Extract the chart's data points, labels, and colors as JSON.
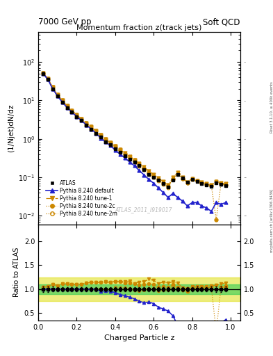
{
  "title_top_left": "7000 GeV pp",
  "title_top_right": "Soft QCD",
  "main_title": "Momentum fraction z(track jets)",
  "ylabel_main": "(1/Njet)dN/dz",
  "ylabel_ratio": "Ratio to ATLAS",
  "xlabel": "Charged Particle z",
  "watermark": "ATLAS_2011_I919017",
  "right_label_top": "Rivet 3.1.10, ≥ 400k events",
  "right_label_bottom": "mcplots.cern.ch [arXiv:1306.3436]",
  "z_atlas": [
    0.025,
    0.05,
    0.075,
    0.1,
    0.125,
    0.15,
    0.175,
    0.2,
    0.225,
    0.25,
    0.275,
    0.3,
    0.325,
    0.35,
    0.375,
    0.4,
    0.425,
    0.45,
    0.475,
    0.5,
    0.525,
    0.55,
    0.575,
    0.6,
    0.625,
    0.65,
    0.675,
    0.7,
    0.725,
    0.75,
    0.775,
    0.8,
    0.825,
    0.85,
    0.875,
    0.9,
    0.925,
    0.95,
    0.975
  ],
  "y_atlas": [
    50,
    35,
    20,
    13,
    9,
    6.5,
    5,
    3.8,
    3.0,
    2.3,
    1.8,
    1.4,
    1.1,
    0.85,
    0.7,
    0.55,
    0.45,
    0.37,
    0.3,
    0.25,
    0.2,
    0.16,
    0.12,
    0.1,
    0.085,
    0.068,
    0.055,
    0.085,
    0.12,
    0.095,
    0.075,
    0.088,
    0.078,
    0.07,
    0.064,
    0.058,
    0.072,
    0.065,
    0.06
  ],
  "y_atlas_err": [
    3,
    2,
    1,
    0.6,
    0.4,
    0.3,
    0.22,
    0.17,
    0.13,
    0.1,
    0.08,
    0.06,
    0.045,
    0.035,
    0.028,
    0.022,
    0.018,
    0.015,
    0.012,
    0.01,
    0.008,
    0.006,
    0.005,
    0.004,
    0.0035,
    0.003,
    0.0025,
    0.004,
    0.005,
    0.004,
    0.003,
    0.004,
    0.004,
    0.003,
    0.003,
    0.003,
    0.004,
    0.004,
    0.003
  ],
  "z_py": [
    0.025,
    0.05,
    0.075,
    0.1,
    0.125,
    0.15,
    0.175,
    0.2,
    0.225,
    0.25,
    0.275,
    0.3,
    0.325,
    0.35,
    0.375,
    0.4,
    0.425,
    0.45,
    0.475,
    0.5,
    0.525,
    0.55,
    0.575,
    0.6,
    0.625,
    0.65,
    0.675,
    0.7,
    0.725,
    0.75,
    0.775,
    0.8,
    0.825,
    0.85,
    0.875,
    0.9,
    0.925,
    0.95,
    0.975
  ],
  "y_default": [
    50,
    35,
    20,
    13,
    9,
    6.5,
    5,
    3.8,
    3.0,
    2.3,
    1.8,
    1.4,
    1.05,
    0.82,
    0.67,
    0.51,
    0.4,
    0.32,
    0.25,
    0.2,
    0.15,
    0.115,
    0.088,
    0.07,
    0.053,
    0.04,
    0.03,
    0.038,
    0.03,
    0.024,
    0.018,
    0.022,
    0.022,
    0.018,
    0.016,
    0.013,
    0.022,
    0.02,
    0.022
  ],
  "y_tune1": [
    52,
    37,
    22,
    14,
    10,
    7.2,
    5.5,
    4.2,
    3.3,
    2.6,
    2.05,
    1.6,
    1.25,
    0.98,
    0.8,
    0.64,
    0.52,
    0.43,
    0.35,
    0.28,
    0.23,
    0.185,
    0.145,
    0.118,
    0.095,
    0.078,
    0.062,
    0.098,
    0.135,
    0.098,
    0.076,
    0.093,
    0.082,
    0.074,
    0.068,
    0.062,
    0.078,
    0.072,
    0.068
  ],
  "y_tune2c": [
    52,
    37,
    22,
    14,
    10,
    7.2,
    5.5,
    4.2,
    3.3,
    2.6,
    2.05,
    1.6,
    1.25,
    0.98,
    0.8,
    0.64,
    0.52,
    0.42,
    0.34,
    0.278,
    0.218,
    0.175,
    0.134,
    0.11,
    0.088,
    0.072,
    0.057,
    0.093,
    0.125,
    0.093,
    0.072,
    0.09,
    0.08,
    0.072,
    0.066,
    0.06,
    0.008,
    0.068,
    0.064
  ],
  "y_tune2m": [
    50,
    35,
    20,
    13,
    9,
    6.5,
    5,
    3.8,
    3.0,
    2.3,
    1.8,
    1.4,
    1.1,
    0.85,
    0.7,
    0.57,
    0.46,
    0.38,
    0.305,
    0.245,
    0.195,
    0.157,
    0.122,
    0.101,
    0.082,
    0.067,
    0.054,
    0.09,
    0.124,
    0.093,
    0.072,
    0.091,
    0.08,
    0.072,
    0.066,
    0.06,
    0.078,
    0.068,
    0.062
  ],
  "atlas_color": "#000000",
  "default_color": "#2222cc",
  "tune_color": "#cc8800",
  "band_green": "#33cc55",
  "band_yellow": "#dddd00",
  "ylim_main": [
    0.006,
    600
  ],
  "ylim_ratio": [
    0.35,
    2.35
  ],
  "xlim": [
    0.0,
    1.05
  ],
  "ratio_yticks": [
    0.5,
    1.0,
    1.5,
    2.0
  ]
}
